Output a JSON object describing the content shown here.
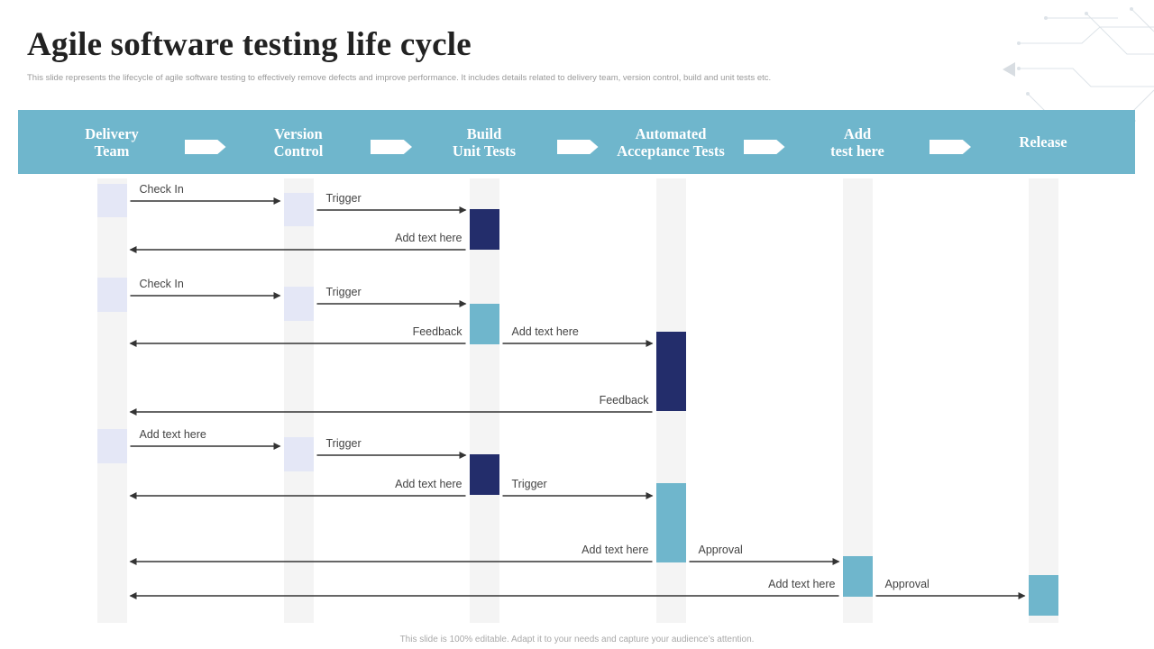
{
  "title": "Agile software testing life cycle",
  "subtitle": "This slide represents the lifecycle of agile software testing to effectively remove defects and improve performance. It includes details related to delivery team,  version control, build and unit tests etc.",
  "footer": "This slide is 100% editable.  Adapt it to your needs and capture your audience’s attention.",
  "colors": {
    "header": "#6fb6cc",
    "light_block": "#e4e7f6",
    "dark_block": "#232d6b",
    "teal_block": "#6fb6cc",
    "lane": "#f4f4f4",
    "arrow": "#333333"
  },
  "stages": [
    {
      "id": "delivery",
      "label": "Delivery\nTeam"
    },
    {
      "id": "version",
      "label": "Version\nControl"
    },
    {
      "id": "build",
      "label": "Build\nUnit Tests"
    },
    {
      "id": "automated",
      "label": "Automated\nAcceptance Tests"
    },
    {
      "id": "add",
      "label": "Add\ntest here"
    },
    {
      "id": "release",
      "label": "Release"
    }
  ],
  "blocks": [
    {
      "stage": "delivery",
      "step": "check-in",
      "color": "light"
    },
    {
      "stage": "version",
      "step": "trigger",
      "color": "light"
    },
    {
      "stage": "build",
      "step": "build-1",
      "color": "dark"
    },
    {
      "stage": "delivery",
      "step": "check-in",
      "color": "light"
    },
    {
      "stage": "version",
      "step": "trigger",
      "color": "light"
    },
    {
      "stage": "build",
      "step": "build-2",
      "color": "teal"
    },
    {
      "stage": "automated",
      "step": "acceptance-1",
      "color": "dark"
    },
    {
      "stage": "delivery",
      "step": "add-text",
      "color": "light"
    },
    {
      "stage": "version",
      "step": "trigger",
      "color": "light"
    },
    {
      "stage": "build",
      "step": "build-3",
      "color": "dark"
    },
    {
      "stage": "automated",
      "step": "acceptance-2",
      "color": "teal"
    },
    {
      "stage": "add",
      "step": "add-test",
      "color": "teal"
    },
    {
      "stage": "release",
      "step": "release",
      "color": "teal"
    }
  ],
  "messages": [
    {
      "from": "delivery",
      "to": "version",
      "label": "Check In"
    },
    {
      "from": "version",
      "to": "build",
      "label": "Trigger"
    },
    {
      "from": "build",
      "to": "delivery",
      "label": "Add text here"
    },
    {
      "from": "delivery",
      "to": "version",
      "label": "Check In"
    },
    {
      "from": "version",
      "to": "build",
      "label": "Trigger"
    },
    {
      "from": "build",
      "to": "delivery",
      "label": "Feedback"
    },
    {
      "from": "build",
      "to": "automated",
      "label": "Add text here"
    },
    {
      "from": "automated",
      "to": "delivery",
      "label": "Feedback"
    },
    {
      "from": "delivery",
      "to": "version",
      "label": "Add text here"
    },
    {
      "from": "version",
      "to": "build",
      "label": "Trigger"
    },
    {
      "from": "build",
      "to": "delivery",
      "label": "Add text here"
    },
    {
      "from": "build",
      "to": "automated",
      "label": "Trigger"
    },
    {
      "from": "automated",
      "to": "delivery",
      "label": "Add text here"
    },
    {
      "from": "automated",
      "to": "add",
      "label": "Approval"
    },
    {
      "from": "add",
      "to": "delivery",
      "label": "Add text here"
    },
    {
      "from": "add",
      "to": "release",
      "label": "Approval"
    }
  ]
}
